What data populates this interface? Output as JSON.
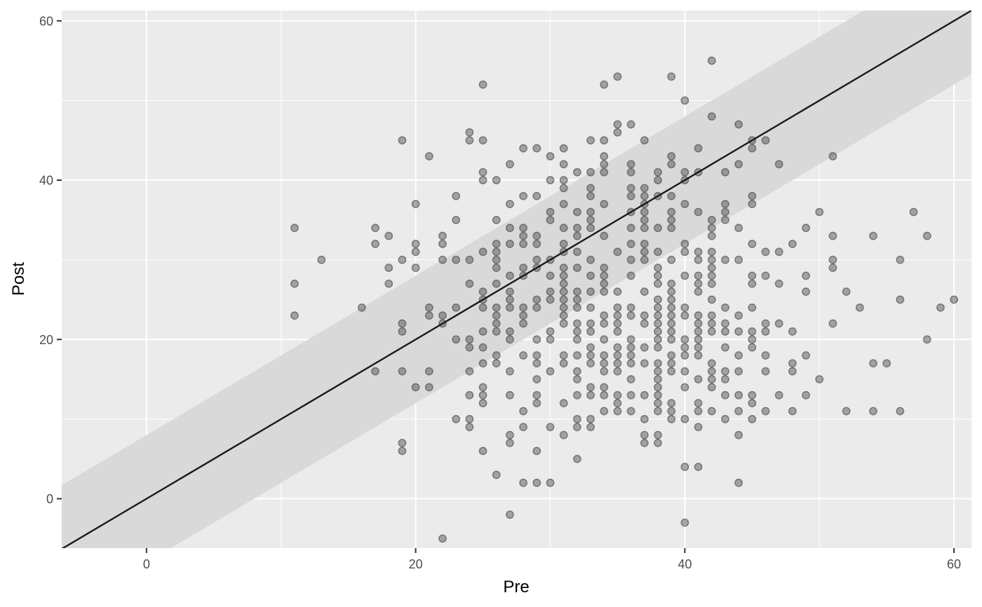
{
  "chart_data": {
    "type": "scatter",
    "xlabel": "Pre",
    "ylabel": "Post",
    "xlim": [
      -6.3,
      61.3
    ],
    "ylim": [
      -6.2,
      61.3
    ],
    "x_ticks": [
      0,
      20,
      40,
      60
    ],
    "y_ticks": [
      0,
      20,
      40,
      60
    ],
    "x_tick_labels": [
      "0",
      "20",
      "40",
      "60"
    ],
    "y_tick_labels": [
      "0",
      "20",
      "40",
      "60"
    ],
    "grid": true,
    "reference_line": {
      "slope": 1,
      "intercept": 0
    },
    "band": {
      "half_width": 8
    },
    "colors": {
      "panel": "#ebebeb",
      "band": "#d9d9d9",
      "point": "#333333",
      "line": "#1a1a1a",
      "grid": "#ffffff"
    },
    "points": [
      [
        11,
        34
      ],
      [
        11,
        27
      ],
      [
        11,
        23
      ],
      [
        13,
        30
      ],
      [
        16,
        24
      ],
      [
        17,
        34
      ],
      [
        17,
        32
      ],
      [
        17,
        16
      ],
      [
        18,
        33
      ],
      [
        18,
        29
      ],
      [
        18,
        27
      ],
      [
        19,
        45
      ],
      [
        19,
        30
      ],
      [
        19,
        22
      ],
      [
        19,
        21
      ],
      [
        19,
        16
      ],
      [
        19,
        7
      ],
      [
        19,
        6
      ],
      [
        20,
        37
      ],
      [
        20,
        32
      ],
      [
        20,
        31
      ],
      [
        20,
        29
      ],
      [
        20,
        14
      ],
      [
        21,
        43
      ],
      [
        21,
        24
      ],
      [
        21,
        23
      ],
      [
        21,
        16
      ],
      [
        21,
        14
      ],
      [
        22,
        33
      ],
      [
        22,
        32
      ],
      [
        22,
        30
      ],
      [
        22,
        23
      ],
      [
        22,
        22
      ],
      [
        22,
        -5
      ],
      [
        23,
        38
      ],
      [
        23,
        35
      ],
      [
        23,
        30
      ],
      [
        23,
        24
      ],
      [
        23,
        20
      ],
      [
        23,
        10
      ],
      [
        24,
        46
      ],
      [
        24,
        45
      ],
      [
        24,
        30
      ],
      [
        24,
        27
      ],
      [
        24,
        20
      ],
      [
        24,
        19
      ],
      [
        24,
        16
      ],
      [
        24,
        13
      ],
      [
        24,
        10
      ],
      [
        24,
        9
      ],
      [
        25,
        52
      ],
      [
        25,
        45
      ],
      [
        25,
        41
      ],
      [
        25,
        40
      ],
      [
        25,
        31
      ],
      [
        25,
        26
      ],
      [
        25,
        25
      ],
      [
        25,
        24
      ],
      [
        25,
        21
      ],
      [
        25,
        19
      ],
      [
        25,
        17
      ],
      [
        25,
        14
      ],
      [
        25,
        13
      ],
      [
        25,
        12
      ],
      [
        25,
        6
      ],
      [
        26,
        40
      ],
      [
        26,
        35
      ],
      [
        26,
        32
      ],
      [
        26,
        31
      ],
      [
        26,
        30
      ],
      [
        26,
        29
      ],
      [
        26,
        27
      ],
      [
        26,
        24
      ],
      [
        26,
        23
      ],
      [
        26,
        22
      ],
      [
        26,
        21
      ],
      [
        26,
        18
      ],
      [
        26,
        17
      ],
      [
        26,
        3
      ],
      [
        27,
        42
      ],
      [
        27,
        37
      ],
      [
        27,
        34
      ],
      [
        27,
        32
      ],
      [
        27,
        28
      ],
      [
        27,
        26
      ],
      [
        27,
        25
      ],
      [
        27,
        24
      ],
      [
        27,
        21
      ],
      [
        27,
        20
      ],
      [
        27,
        16
      ],
      [
        27,
        13
      ],
      [
        27,
        8
      ],
      [
        27,
        7
      ],
      [
        27,
        -2
      ],
      [
        28,
        44
      ],
      [
        28,
        38
      ],
      [
        28,
        34
      ],
      [
        28,
        33
      ],
      [
        28,
        32
      ],
      [
        28,
        29
      ],
      [
        28,
        28
      ],
      [
        28,
        24
      ],
      [
        28,
        23
      ],
      [
        28,
        22
      ],
      [
        28,
        18
      ],
      [
        28,
        11
      ],
      [
        28,
        9
      ],
      [
        28,
        2
      ],
      [
        29,
        44
      ],
      [
        29,
        38
      ],
      [
        29,
        33
      ],
      [
        29,
        32
      ],
      [
        29,
        30
      ],
      [
        29,
        29
      ],
      [
        29,
        25
      ],
      [
        29,
        24
      ],
      [
        29,
        20
      ],
      [
        29,
        18
      ],
      [
        29,
        17
      ],
      [
        29,
        15
      ],
      [
        29,
        13
      ],
      [
        29,
        12
      ],
      [
        29,
        6
      ],
      [
        29,
        2
      ],
      [
        30,
        43
      ],
      [
        30,
        40
      ],
      [
        30,
        36
      ],
      [
        30,
        35
      ],
      [
        30,
        30
      ],
      [
        30,
        28
      ],
      [
        30,
        26
      ],
      [
        30,
        25
      ],
      [
        30,
        21
      ],
      [
        30,
        20
      ],
      [
        30,
        16
      ],
      [
        30,
        9
      ],
      [
        30,
        2
      ],
      [
        31,
        44
      ],
      [
        31,
        42
      ],
      [
        31,
        40
      ],
      [
        31,
        39
      ],
      [
        31,
        37
      ],
      [
        31,
        34
      ],
      [
        31,
        32
      ],
      [
        31,
        31
      ],
      [
        31,
        29
      ],
      [
        31,
        28
      ],
      [
        31,
        27
      ],
      [
        31,
        26
      ],
      [
        31,
        25
      ],
      [
        31,
        24
      ],
      [
        31,
        23
      ],
      [
        31,
        22
      ],
      [
        31,
        18
      ],
      [
        31,
        17
      ],
      [
        31,
        12
      ],
      [
        31,
        8
      ],
      [
        32,
        41
      ],
      [
        32,
        36
      ],
      [
        32,
        34
      ],
      [
        32,
        33
      ],
      [
        32,
        31
      ],
      [
        32,
        29
      ],
      [
        32,
        26
      ],
      [
        32,
        25
      ],
      [
        32,
        24
      ],
      [
        32,
        22
      ],
      [
        32,
        21
      ],
      [
        32,
        20
      ],
      [
        32,
        18
      ],
      [
        32,
        16
      ],
      [
        32,
        15
      ],
      [
        32,
        13
      ],
      [
        32,
        10
      ],
      [
        32,
        9
      ],
      [
        32,
        5
      ],
      [
        33,
        45
      ],
      [
        33,
        41
      ],
      [
        33,
        39
      ],
      [
        33,
        38
      ],
      [
        33,
        36
      ],
      [
        33,
        35
      ],
      [
        33,
        34
      ],
      [
        33,
        30
      ],
      [
        33,
        28
      ],
      [
        33,
        26
      ],
      [
        33,
        24
      ],
      [
        33,
        22
      ],
      [
        33,
        21
      ],
      [
        33,
        19
      ],
      [
        33,
        18
      ],
      [
        33,
        17
      ],
      [
        33,
        14
      ],
      [
        33,
        13
      ],
      [
        33,
        10
      ],
      [
        33,
        9
      ],
      [
        34,
        52
      ],
      [
        34,
        45
      ],
      [
        34,
        43
      ],
      [
        34,
        42
      ],
      [
        34,
        41
      ],
      [
        34,
        37
      ],
      [
        34,
        33
      ],
      [
        34,
        29
      ],
      [
        34,
        28
      ],
      [
        34,
        27
      ],
      [
        34,
        26
      ],
      [
        34,
        23
      ],
      [
        34,
        22
      ],
      [
        34,
        20
      ],
      [
        34,
        18
      ],
      [
        34,
        17
      ],
      [
        34,
        16
      ],
      [
        34,
        14
      ],
      [
        34,
        13
      ],
      [
        34,
        11
      ],
      [
        35,
        53
      ],
      [
        35,
        47
      ],
      [
        35,
        46
      ],
      [
        35,
        31
      ],
      [
        35,
        26
      ],
      [
        35,
        24
      ],
      [
        35,
        23
      ],
      [
        35,
        22
      ],
      [
        35,
        21
      ],
      [
        35,
        19
      ],
      [
        35,
        18
      ],
      [
        35,
        17
      ],
      [
        35,
        16
      ],
      [
        35,
        13
      ],
      [
        35,
        12
      ],
      [
        35,
        11
      ],
      [
        36,
        47
      ],
      [
        36,
        42
      ],
      [
        36,
        41
      ],
      [
        36,
        39
      ],
      [
        36,
        38
      ],
      [
        36,
        36
      ],
      [
        36,
        34
      ],
      [
        36,
        32
      ],
      [
        36,
        30
      ],
      [
        36,
        28
      ],
      [
        36,
        24
      ],
      [
        36,
        23
      ],
      [
        36,
        20
      ],
      [
        36,
        19
      ],
      [
        36,
        18
      ],
      [
        36,
        17
      ],
      [
        36,
        15
      ],
      [
        36,
        13
      ],
      [
        36,
        11
      ],
      [
        37,
        45
      ],
      [
        37,
        39
      ],
      [
        37,
        38
      ],
      [
        37,
        37
      ],
      [
        37,
        36
      ],
      [
        37,
        35
      ],
      [
        37,
        34
      ],
      [
        37,
        32
      ],
      [
        37,
        31
      ],
      [
        37,
        30
      ],
      [
        37,
        26
      ],
      [
        37,
        23
      ],
      [
        37,
        22
      ],
      [
        37,
        19
      ],
      [
        37,
        17
      ],
      [
        37,
        13
      ],
      [
        37,
        10
      ],
      [
        37,
        8
      ],
      [
        37,
        7
      ],
      [
        38,
        41
      ],
      [
        38,
        40
      ],
      [
        38,
        38
      ],
      [
        38,
        34
      ],
      [
        38,
        31
      ],
      [
        38,
        29
      ],
      [
        38,
        28
      ],
      [
        38,
        27
      ],
      [
        38,
        25
      ],
      [
        38,
        24
      ],
      [
        38,
        23
      ],
      [
        38,
        22
      ],
      [
        38,
        21
      ],
      [
        38,
        20
      ],
      [
        38,
        19
      ],
      [
        38,
        17
      ],
      [
        38,
        16
      ],
      [
        38,
        15
      ],
      [
        38,
        14
      ],
      [
        38,
        13
      ],
      [
        38,
        12
      ],
      [
        38,
        11
      ],
      [
        38,
        8
      ],
      [
        38,
        7
      ],
      [
        39,
        53
      ],
      [
        39,
        43
      ],
      [
        39,
        42
      ],
      [
        39,
        38
      ],
      [
        39,
        36
      ],
      [
        39,
        35
      ],
      [
        39,
        34
      ],
      [
        39,
        30
      ],
      [
        39,
        27
      ],
      [
        39,
        26
      ],
      [
        39,
        25
      ],
      [
        39,
        24
      ],
      [
        39,
        23
      ],
      [
        39,
        22
      ],
      [
        39,
        21
      ],
      [
        39,
        20
      ],
      [
        39,
        18
      ],
      [
        39,
        17
      ],
      [
        39,
        16
      ],
      [
        39,
        12
      ],
      [
        39,
        11
      ],
      [
        39,
        10
      ],
      [
        40,
        50
      ],
      [
        40,
        41
      ],
      [
        40,
        40
      ],
      [
        40,
        37
      ],
      [
        40,
        32
      ],
      [
        40,
        31
      ],
      [
        40,
        28
      ],
      [
        40,
        24
      ],
      [
        40,
        23
      ],
      [
        40,
        20
      ],
      [
        40,
        19
      ],
      [
        40,
        18
      ],
      [
        40,
        16
      ],
      [
        40,
        14
      ],
      [
        40,
        10
      ],
      [
        40,
        4
      ],
      [
        40,
        -3
      ],
      [
        41,
        44
      ],
      [
        41,
        41
      ],
      [
        41,
        36
      ],
      [
        41,
        31
      ],
      [
        41,
        30
      ],
      [
        41,
        28
      ],
      [
        41,
        27
      ],
      [
        41,
        26
      ],
      [
        41,
        23
      ],
      [
        41,
        22
      ],
      [
        41,
        21
      ],
      [
        41,
        20
      ],
      [
        41,
        19
      ],
      [
        41,
        18
      ],
      [
        41,
        15
      ],
      [
        41,
        12
      ],
      [
        41,
        11
      ],
      [
        41,
        9
      ],
      [
        41,
        4
      ],
      [
        42,
        55
      ],
      [
        42,
        48
      ],
      [
        42,
        35
      ],
      [
        42,
        34
      ],
      [
        42,
        33
      ],
      [
        42,
        31
      ],
      [
        42,
        30
      ],
      [
        42,
        29
      ],
      [
        42,
        28
      ],
      [
        42,
        27
      ],
      [
        42,
        25
      ],
      [
        42,
        23
      ],
      [
        42,
        22
      ],
      [
        42,
        21
      ],
      [
        42,
        17
      ],
      [
        42,
        16
      ],
      [
        42,
        15
      ],
      [
        42,
        14
      ],
      [
        42,
        11
      ],
      [
        43,
        41
      ],
      [
        43,
        37
      ],
      [
        43,
        36
      ],
      [
        43,
        35
      ],
      [
        43,
        30
      ],
      [
        43,
        24
      ],
      [
        43,
        22
      ],
      [
        43,
        21
      ],
      [
        43,
        19
      ],
      [
        43,
        16
      ],
      [
        43,
        15
      ],
      [
        43,
        13
      ],
      [
        43,
        10
      ],
      [
        44,
        47
      ],
      [
        44,
        42
      ],
      [
        44,
        34
      ],
      [
        44,
        30
      ],
      [
        44,
        23
      ],
      [
        44,
        21
      ],
      [
        44,
        18
      ],
      [
        44,
        16
      ],
      [
        44,
        13
      ],
      [
        44,
        11
      ],
      [
        44,
        8
      ],
      [
        44,
        2
      ],
      [
        45,
        45
      ],
      [
        45,
        44
      ],
      [
        45,
        38
      ],
      [
        45,
        37
      ],
      [
        45,
        32
      ],
      [
        45,
        28
      ],
      [
        45,
        27
      ],
      [
        45,
        24
      ],
      [
        45,
        21
      ],
      [
        45,
        20
      ],
      [
        45,
        19
      ],
      [
        45,
        13
      ],
      [
        45,
        12
      ],
      [
        45,
        10
      ],
      [
        46,
        45
      ],
      [
        46,
        31
      ],
      [
        46,
        28
      ],
      [
        46,
        22
      ],
      [
        46,
        21
      ],
      [
        46,
        18
      ],
      [
        46,
        16
      ],
      [
        46,
        11
      ],
      [
        47,
        42
      ],
      [
        47,
        31
      ],
      [
        47,
        27
      ],
      [
        47,
        22
      ],
      [
        47,
        13
      ],
      [
        48,
        32
      ],
      [
        48,
        21
      ],
      [
        48,
        17
      ],
      [
        48,
        16
      ],
      [
        48,
        11
      ],
      [
        49,
        34
      ],
      [
        49,
        28
      ],
      [
        49,
        26
      ],
      [
        49,
        18
      ],
      [
        49,
        13
      ],
      [
        50,
        36
      ],
      [
        50,
        15
      ],
      [
        51,
        43
      ],
      [
        51,
        33
      ],
      [
        51,
        30
      ],
      [
        51,
        29
      ],
      [
        51,
        22
      ],
      [
        52,
        26
      ],
      [
        52,
        11
      ],
      [
        53,
        24
      ],
      [
        54,
        33
      ],
      [
        54,
        17
      ],
      [
        54,
        11
      ],
      [
        55,
        17
      ],
      [
        56,
        30
      ],
      [
        56,
        25
      ],
      [
        56,
        11
      ],
      [
        57,
        36
      ],
      [
        58,
        33
      ],
      [
        58,
        20
      ],
      [
        59,
        24
      ],
      [
        60,
        25
      ]
    ]
  }
}
